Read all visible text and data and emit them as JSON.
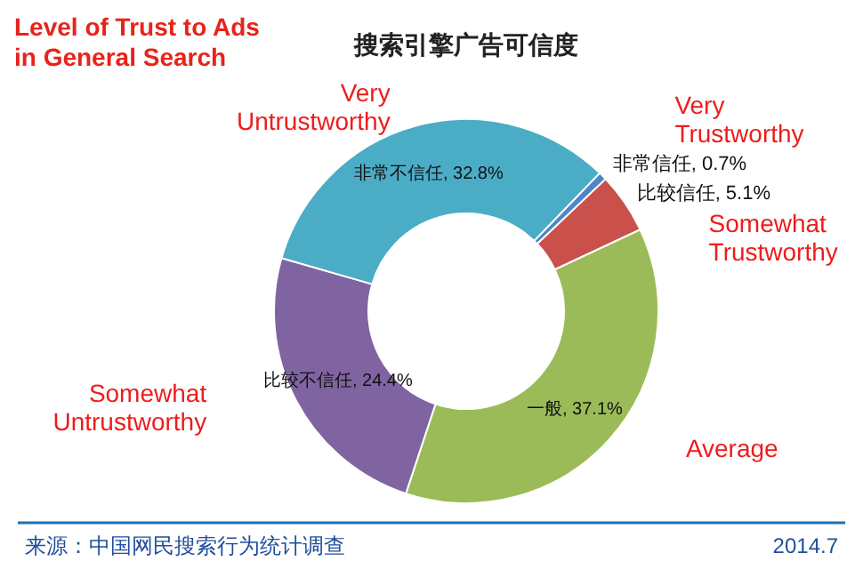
{
  "chart_data": {
    "type": "donut",
    "title": "Level of Trust to Ads in General Search",
    "subtitle": "搜索引擎广告可信度",
    "categories": [
      "非常信任",
      "比较信任",
      "一般",
      "比较不信任",
      "非常不信任"
    ],
    "values": [
      0.7,
      5.1,
      37.1,
      24.4,
      32.8
    ],
    "colors": [
      "#4f86c6",
      "#c9504b",
      "#9bbb59",
      "#8064a2",
      "#4bacc6"
    ],
    "value_labels": [
      "0.7%",
      "5.1%",
      "37.1%",
      "24.4%",
      "32.8%"
    ],
    "annotations": [
      {
        "text": "Very Trustworthy",
        "x": "非常信任"
      },
      {
        "text": "Somewhat Trustworthy",
        "x": "比较信任"
      },
      {
        "text": "Average",
        "x": "一般"
      },
      {
        "text": "Somewhat Untrustworthy",
        "x": "比较不信任"
      },
      {
        "text": "Very Untrustworthy",
        "x": "非常不信任"
      },
      "来源：中国网民搜索行为统计调查",
      "2014.7"
    ]
  }
}
